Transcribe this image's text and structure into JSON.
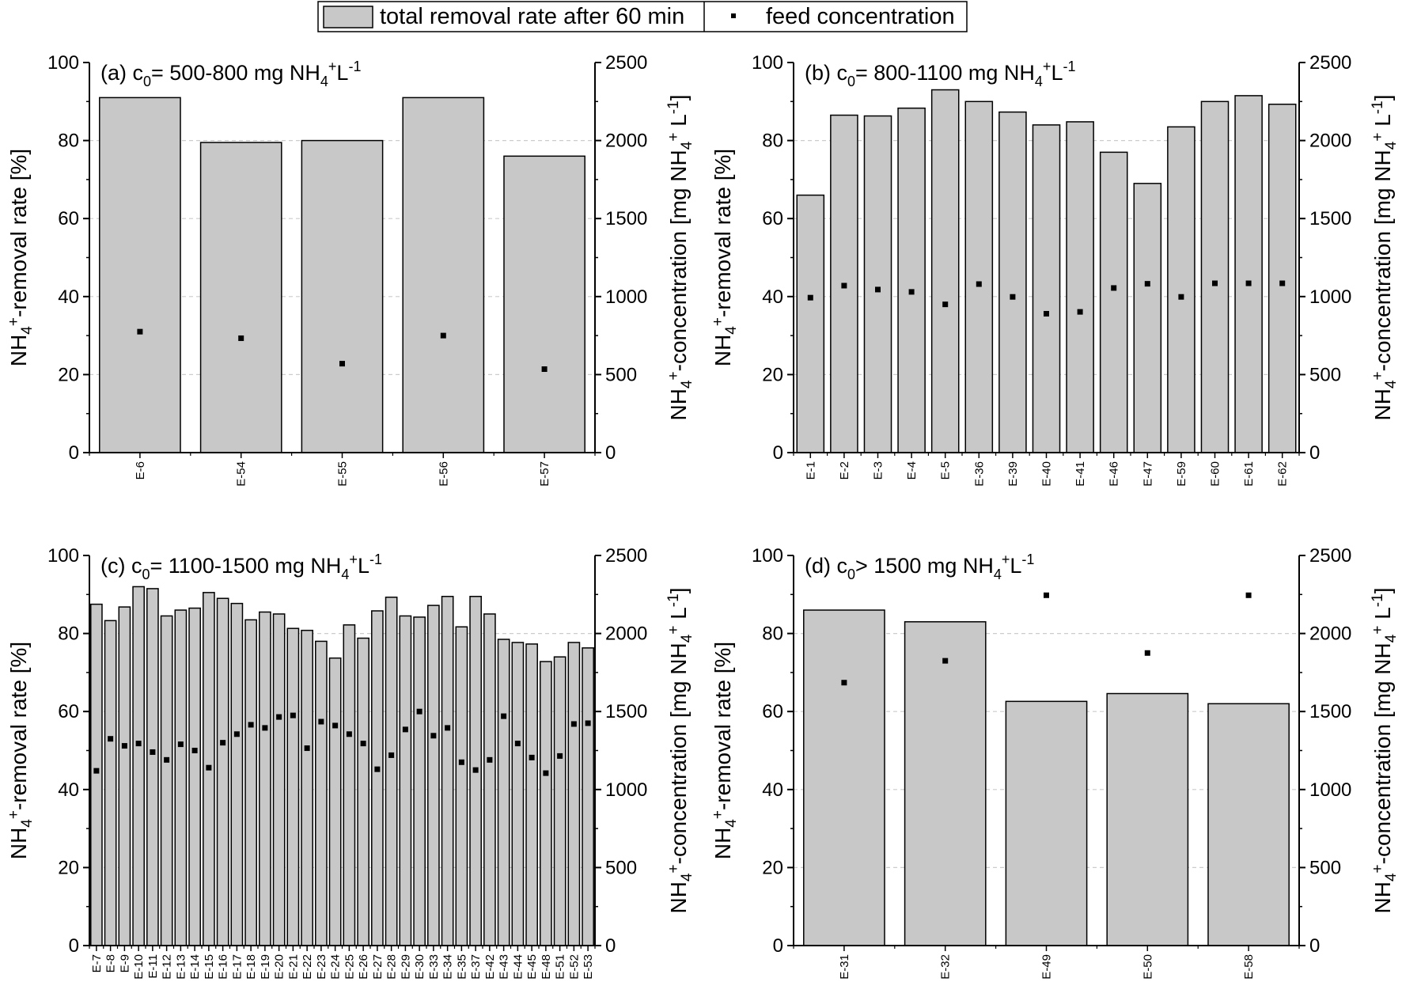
{
  "legend": {
    "bar_label": "total removal rate after 60 min",
    "marker_label": "feed concentration"
  },
  "colors": {
    "bar_fill": "#c8c8c8",
    "bar_stroke": "#000000",
    "marker": "#000000",
    "gridline": "#cccccc"
  },
  "chart_data": [
    {
      "type": "bar",
      "panel": "a",
      "title": "(a) c0= 500-800 mg NH4+L-1",
      "ylabel": "NH4+-removal rate [%]",
      "y2label": "NH4+-concentration [mg NH4+ L-1]",
      "ylim": [
        0,
        100
      ],
      "y2lim": [
        0,
        2500
      ],
      "yticks": [
        "0",
        "20",
        "40",
        "60",
        "80",
        "100"
      ],
      "y2ticks": [
        "0",
        "500",
        "1000",
        "1500",
        "2000",
        "2500"
      ],
      "grid": true,
      "categories": [
        "E-6",
        "E-54",
        "E-55",
        "E-56",
        "E-57"
      ],
      "series": [
        {
          "name": "total removal rate after 60 min",
          "axis": "left",
          "values": [
            91,
            79.5,
            80,
            91,
            76
          ]
        },
        {
          "name": "feed concentration",
          "axis": "right",
          "values": [
            775,
            733,
            570,
            750,
            535
          ]
        }
      ]
    },
    {
      "type": "bar",
      "panel": "b",
      "title": "(b) c0= 800-1100 mg NH4+L-1",
      "ylabel": "NH4+-removal rate [%]",
      "y2label": "NH4+-concentration [mg NH4+ L-1]",
      "ylim": [
        0,
        100
      ],
      "y2lim": [
        0,
        2500
      ],
      "yticks": [
        "0",
        "20",
        "40",
        "60",
        "80",
        "100"
      ],
      "y2ticks": [
        "0",
        "500",
        "1000",
        "1500",
        "2000",
        "2500"
      ],
      "grid": true,
      "categories": [
        "E-1",
        "E-2",
        "E-3",
        "E-4",
        "E-5",
        "E-36",
        "E-39",
        "E-40",
        "E-41",
        "E-46",
        "E-47",
        "E-59",
        "E-60",
        "E-61",
        "E-62"
      ],
      "series": [
        {
          "name": "total removal rate after 60 min",
          "axis": "left",
          "values": [
            66,
            86.5,
            86.3,
            88.3,
            93,
            90,
            87.3,
            84,
            84.8,
            77,
            69,
            83.5,
            90,
            91.5,
            89.3
          ]
        },
        {
          "name": "feed concentration",
          "axis": "right",
          "values": [
            993,
            1070,
            1045,
            1030,
            950,
            1080,
            998,
            890,
            902,
            1055,
            1082,
            998,
            1085,
            1085,
            1085
          ]
        }
      ]
    },
    {
      "type": "bar",
      "panel": "c",
      "title": "(c) c0= 1100-1500 mg NH4+L-1",
      "ylabel": "NH4+-removal rate [%]",
      "y2label": "NH4+-concentration [mg NH4+ L-1]",
      "ylim": [
        0,
        100
      ],
      "y2lim": [
        0,
        2500
      ],
      "yticks": [
        "0",
        "20",
        "40",
        "60",
        "80",
        "100"
      ],
      "y2ticks": [
        "0",
        "500",
        "1000",
        "1500",
        "2000",
        "2500"
      ],
      "grid": true,
      "categories": [
        "E-7",
        "E-8",
        "E-9",
        "E-10",
        "E-11",
        "E-12",
        "E-13",
        "E-14",
        "E-15",
        "E-16",
        "E-17",
        "E-18",
        "E-19",
        "E-20",
        "E-21",
        "E-22",
        "E-23",
        "E-24",
        "E-25",
        "E-26",
        "E-27",
        "E-28",
        "E-29",
        "E-30",
        "E-33",
        "E-34",
        "E-35",
        "E-37",
        "E-42",
        "E-43",
        "E-44",
        "E-45",
        "E-48",
        "E-51",
        "E-52",
        "E-53"
      ],
      "series": [
        {
          "name": "total removal rate after 60 min",
          "axis": "left",
          "values": [
            87.5,
            83.3,
            86.8,
            92,
            91.5,
            84.5,
            86,
            86.5,
            90.5,
            89,
            87.7,
            83.5,
            85.5,
            85,
            81.3,
            80.8,
            78,
            73.7,
            82.2,
            78.8,
            85.8,
            89.3,
            84.5,
            84.2,
            87.2,
            89.5,
            81.7,
            89.5,
            85,
            78.5,
            77.7,
            77.3,
            72.8,
            74,
            77.7,
            76.3
          ]
        },
        {
          "name": "feed concentration",
          "axis": "right",
          "values": [
            1120,
            1325,
            1280,
            1295,
            1240,
            1190,
            1290,
            1250,
            1140,
            1300,
            1355,
            1415,
            1395,
            1465,
            1475,
            1265,
            1435,
            1410,
            1355,
            1295,
            1130,
            1220,
            1385,
            1500,
            1345,
            1395,
            1175,
            1125,
            1190,
            1470,
            1295,
            1205,
            1105,
            1215,
            1420,
            1425
          ]
        }
      ]
    },
    {
      "type": "bar",
      "panel": "d",
      "title": "(d) c0> 1500 mg NH4+L-1",
      "ylabel": "NH4+-removal rate [%]",
      "y2label": "NH4+-concentration [mg NH4+ L-1]",
      "ylim": [
        0,
        100
      ],
      "y2lim": [
        0,
        2500
      ],
      "yticks": [
        "0",
        "20",
        "40",
        "60",
        "80",
        "100"
      ],
      "y2ticks": [
        "0",
        "500",
        "1000",
        "1500",
        "2000",
        "2500"
      ],
      "grid": true,
      "categories": [
        "E-31",
        "E-32",
        "E-49",
        "E-50",
        "E-58"
      ],
      "series": [
        {
          "name": "total removal rate after 60 min",
          "axis": "left",
          "values": [
            86,
            83,
            62.6,
            64.6,
            62
          ]
        },
        {
          "name": "feed concentration",
          "axis": "right",
          "values": [
            1685,
            1825,
            2245,
            1875,
            2245
          ]
        }
      ]
    }
  ]
}
